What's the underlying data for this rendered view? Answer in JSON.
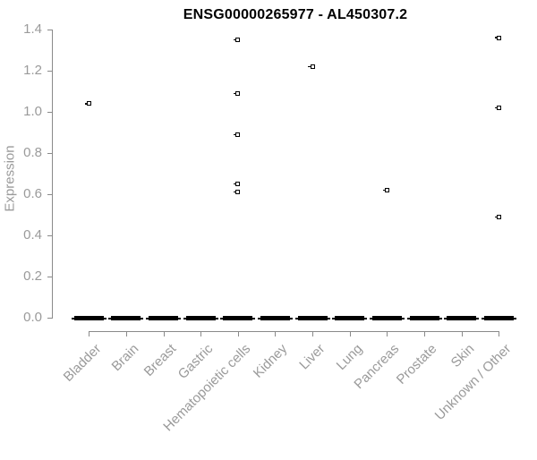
{
  "chart_data": {
    "type": "boxplot",
    "title": "ENSG00000265977 - AL450307.2",
    "ylabel": "Expression",
    "xlabel": "",
    "ylim": [
      0.0,
      1.4
    ],
    "yticks": [
      "0.0",
      "0.2",
      "0.4",
      "0.6",
      "0.8",
      "1.0",
      "1.2",
      "1.4"
    ],
    "grid": false,
    "legend": "none",
    "categories": [
      "Bladder",
      "Brain",
      "Breast",
      "Gastric",
      "Hematopoietic cells",
      "Kidney",
      "Liver",
      "Lung",
      "Pancreas",
      "Prostate",
      "Skin",
      "Unknown / Other"
    ],
    "box_medians": [
      0,
      0,
      0,
      0,
      0,
      0,
      0,
      0,
      0,
      0,
      0,
      0
    ],
    "outliers": [
      {
        "category": "Bladder",
        "value": 1.04
      },
      {
        "category": "Hematopoietic cells",
        "value": 1.35
      },
      {
        "category": "Hematopoietic cells",
        "value": 1.09
      },
      {
        "category": "Hematopoietic cells",
        "value": 0.89
      },
      {
        "category": "Hematopoietic cells",
        "value": 0.65
      },
      {
        "category": "Hematopoietic cells",
        "value": 0.61
      },
      {
        "category": "Liver",
        "value": 1.22
      },
      {
        "category": "Pancreas",
        "value": 0.62
      },
      {
        "category": "Unknown / Other",
        "value": 1.36
      },
      {
        "category": "Unknown / Other",
        "value": 1.02
      },
      {
        "category": "Unknown / Other",
        "value": 0.49
      }
    ],
    "colors": {
      "box": "#000000",
      "outlier_border": "#000000",
      "outlier_fill": "#ffffff",
      "axis": "#8a8a8a",
      "tick_text": "#9a9a9a",
      "title_text": "#000000",
      "background": "#ffffff"
    }
  }
}
